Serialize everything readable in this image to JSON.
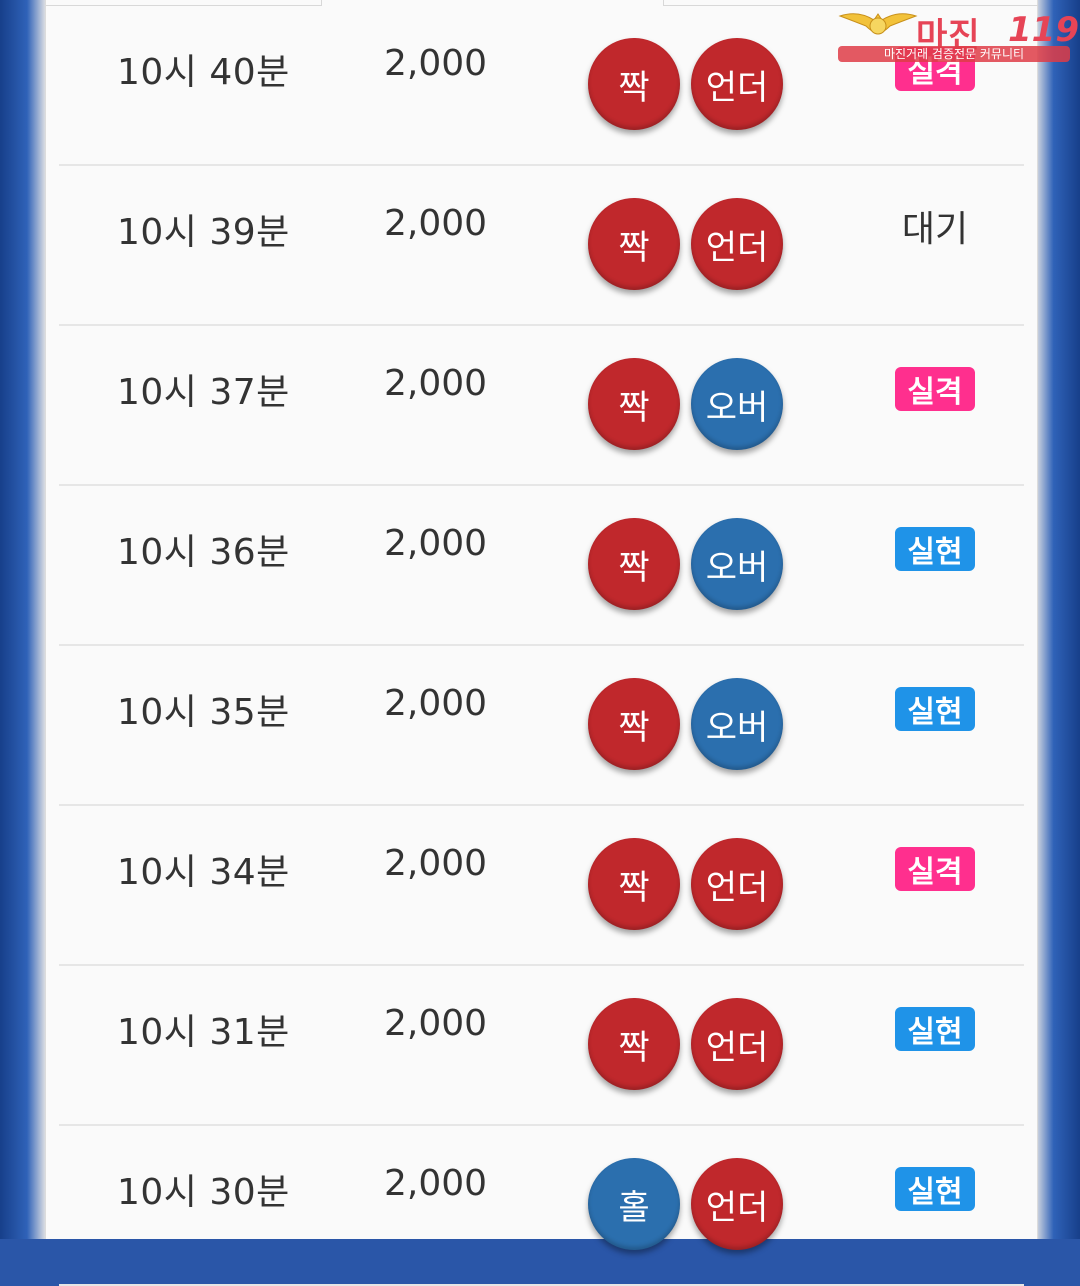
{
  "watermark": {
    "title": "마진",
    "number": "119",
    "subtitle": "마진거래 검증전문 커뮤니티",
    "color": "#e64456"
  },
  "colors": {
    "ball_red": "#c0282c",
    "ball_blue": "#2b6fae",
    "badge_fail": "#ff2f8e",
    "badge_hit": "#1f93e8"
  },
  "rows": [
    {
      "time": "10시 40분",
      "amount": "2,000",
      "pick1": "짝",
      "pick1_color": "red",
      "pick2": "언더",
      "pick2_color": "red",
      "result": "실격",
      "result_type": "fail"
    },
    {
      "time": "10시 39분",
      "amount": "2,000",
      "pick1": "짝",
      "pick1_color": "red",
      "pick2": "언더",
      "pick2_color": "red",
      "result": "대기",
      "result_type": "wait"
    },
    {
      "time": "10시 37분",
      "amount": "2,000",
      "pick1": "짝",
      "pick1_color": "red",
      "pick2": "오버",
      "pick2_color": "blue",
      "result": "실격",
      "result_type": "fail"
    },
    {
      "time": "10시 36분",
      "amount": "2,000",
      "pick1": "짝",
      "pick1_color": "red",
      "pick2": "오버",
      "pick2_color": "blue",
      "result": "실현",
      "result_type": "hit"
    },
    {
      "time": "10시 35분",
      "amount": "2,000",
      "pick1": "짝",
      "pick1_color": "red",
      "pick2": "오버",
      "pick2_color": "blue",
      "result": "실현",
      "result_type": "hit"
    },
    {
      "time": "10시 34분",
      "amount": "2,000",
      "pick1": "짝",
      "pick1_color": "red",
      "pick2": "언더",
      "pick2_color": "red",
      "result": "실격",
      "result_type": "fail"
    },
    {
      "time": "10시 31분",
      "amount": "2,000",
      "pick1": "짝",
      "pick1_color": "red",
      "pick2": "언더",
      "pick2_color": "red",
      "result": "실현",
      "result_type": "hit"
    },
    {
      "time": "10시 30분",
      "amount": "2,000",
      "pick1": "홀",
      "pick1_color": "blue",
      "pick2": "언더",
      "pick2_color": "red",
      "result": "실현",
      "result_type": "hit"
    }
  ]
}
